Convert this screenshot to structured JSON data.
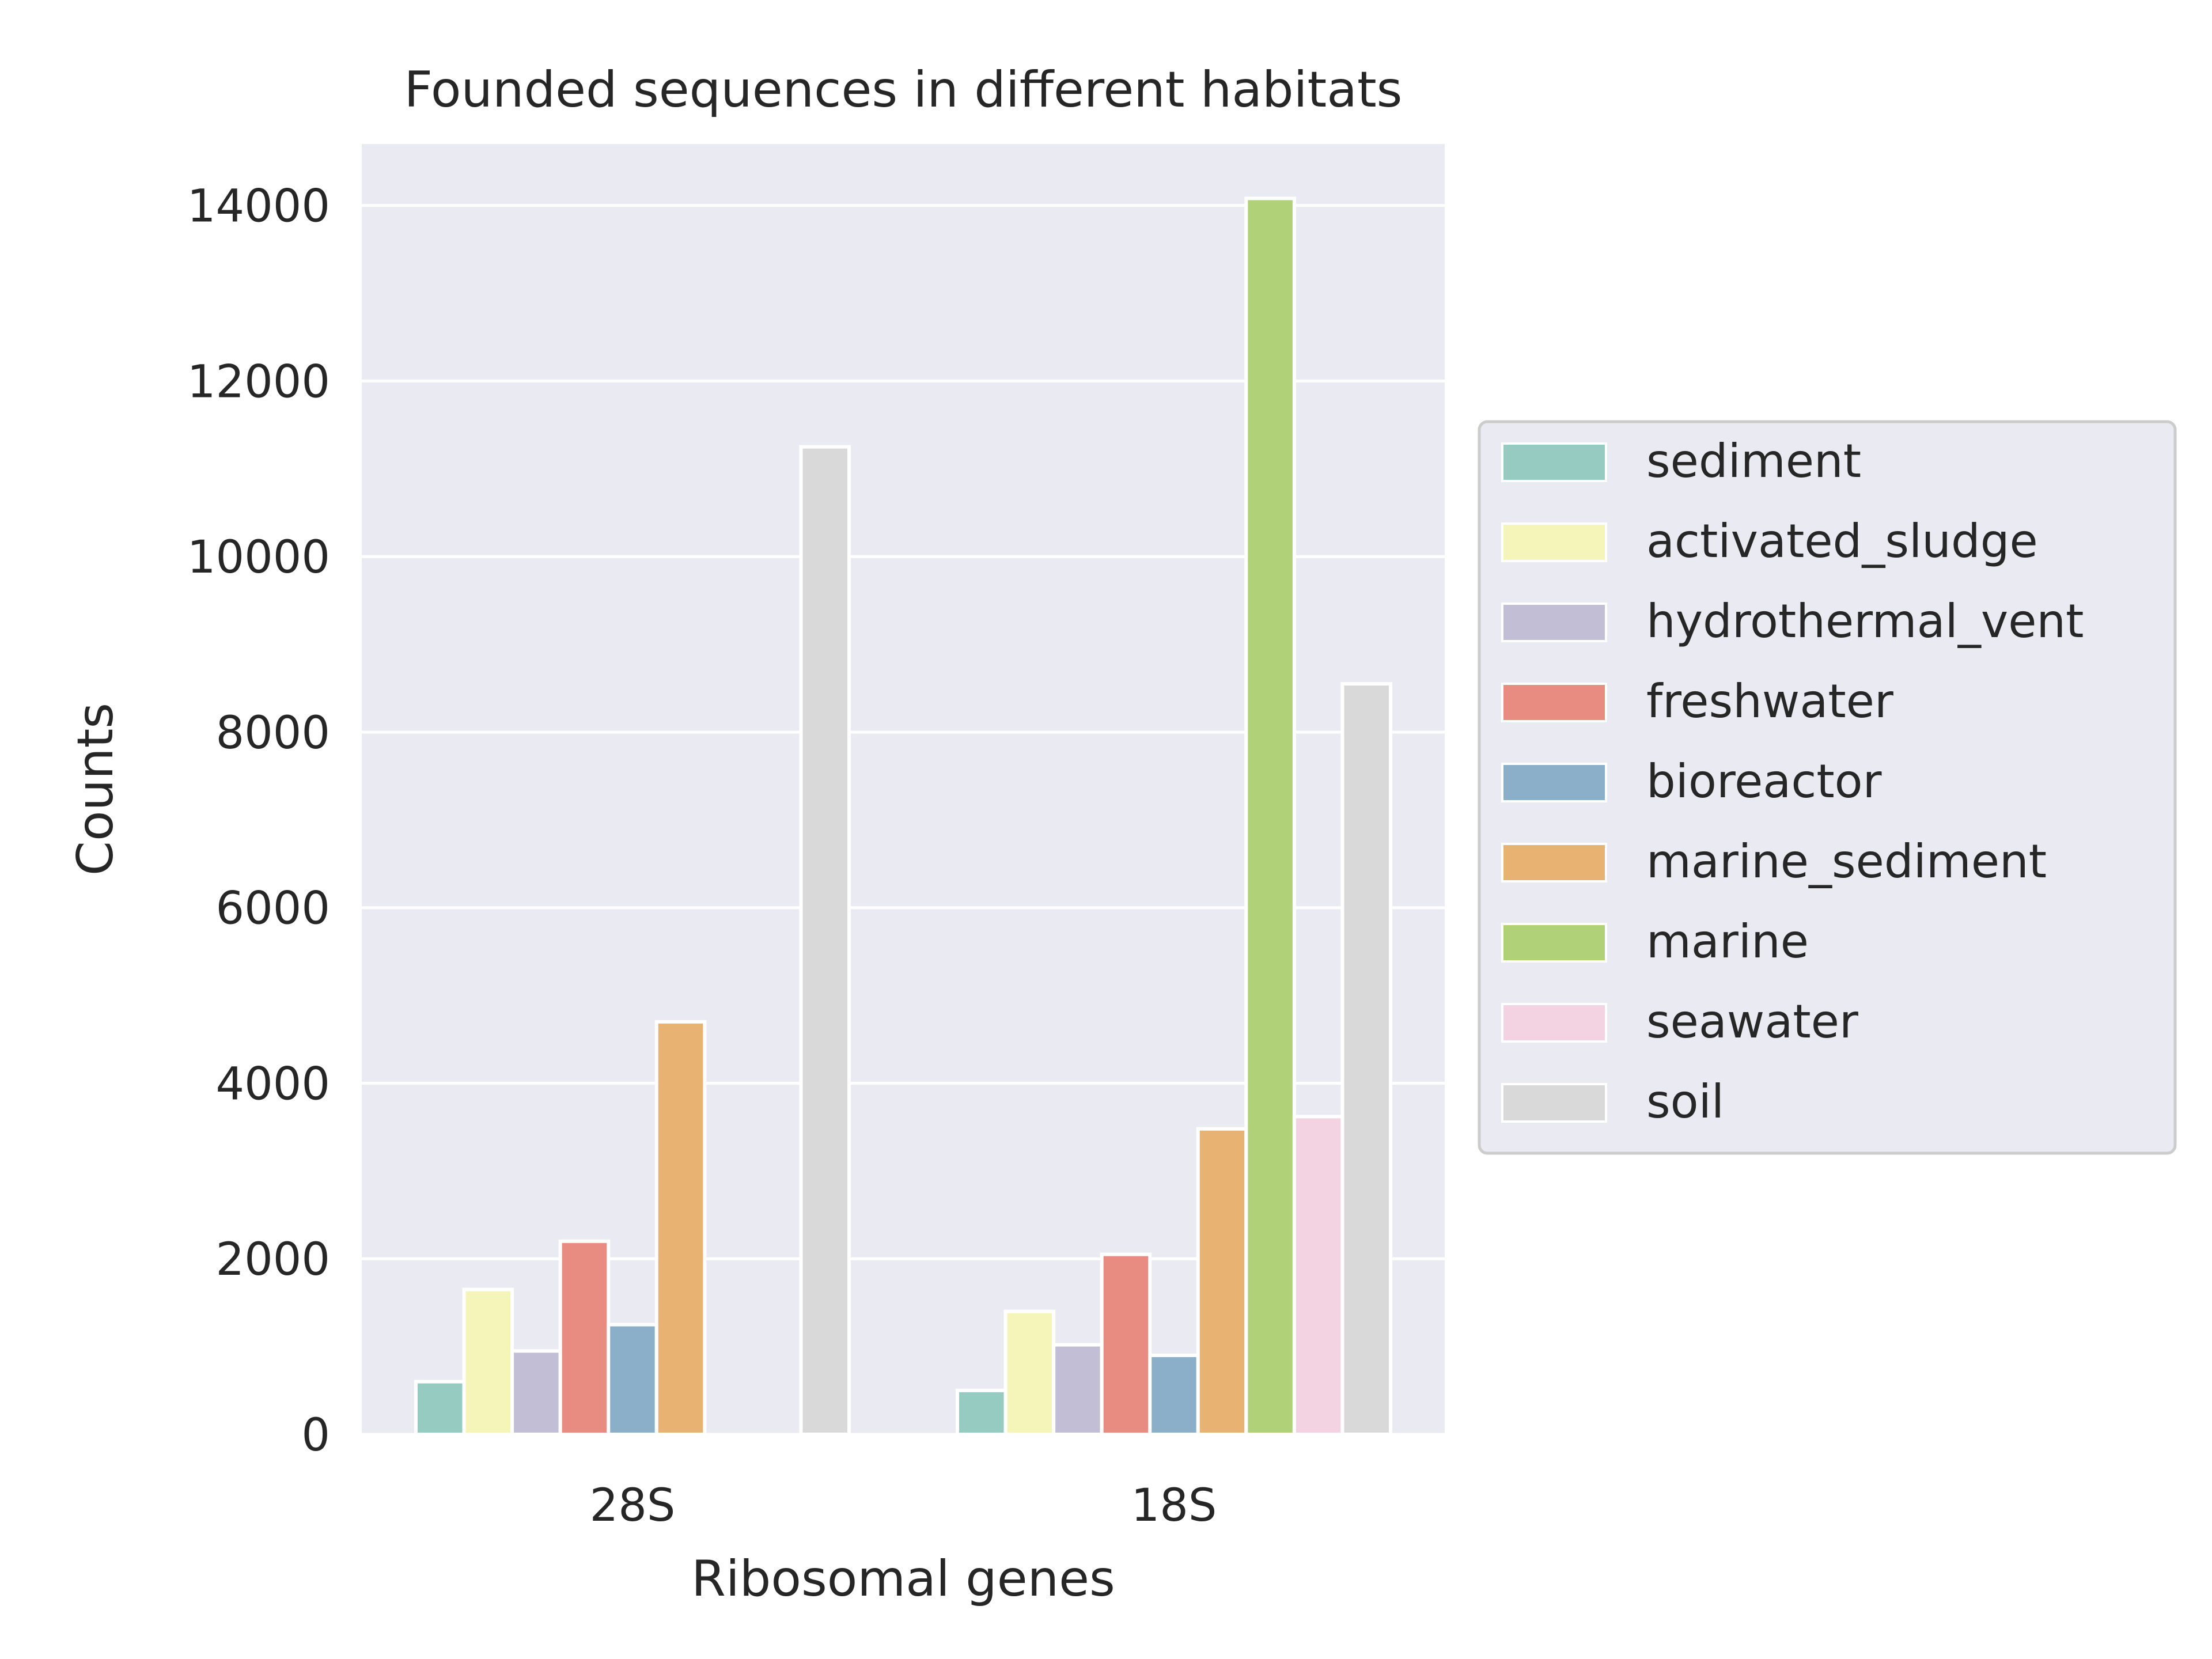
{
  "chart_data": {
    "type": "bar",
    "title": "Founded sequences in different habitats",
    "xlabel": "Ribosomal genes",
    "ylabel": "Counts",
    "categories": [
      "28S",
      "18S"
    ],
    "ylim": [
      0,
      14700
    ],
    "yticks": [
      0,
      2000,
      4000,
      6000,
      8000,
      10000,
      12000,
      14000
    ],
    "grid": true,
    "legend_position": "right",
    "series": [
      {
        "name": "sediment",
        "color": "#96cbc1",
        "values": [
          600,
          500
        ]
      },
      {
        "name": "activated_sludge",
        "color": "#f6f5b9",
        "values": [
          1650,
          1400
        ]
      },
      {
        "name": "hydrothermal_vent",
        "color": "#c2bed6",
        "values": [
          950,
          1020
        ]
      },
      {
        "name": "freshwater",
        "color": "#e88c82",
        "values": [
          2200,
          2050
        ]
      },
      {
        "name": "bioreactor",
        "color": "#8baec9",
        "values": [
          1250,
          900
        ]
      },
      {
        "name": "marine_sediment",
        "color": "#e8b272",
        "values": [
          4700,
          3480
        ]
      },
      {
        "name": "marine",
        "color": "#b1d179",
        "values": [
          0,
          14080
        ]
      },
      {
        "name": "seawater",
        "color": "#f3d2e1",
        "values": [
          0,
          3620
        ]
      },
      {
        "name": "soil",
        "color": "#d9d9d9",
        "values": [
          11250,
          8550
        ]
      }
    ]
  }
}
